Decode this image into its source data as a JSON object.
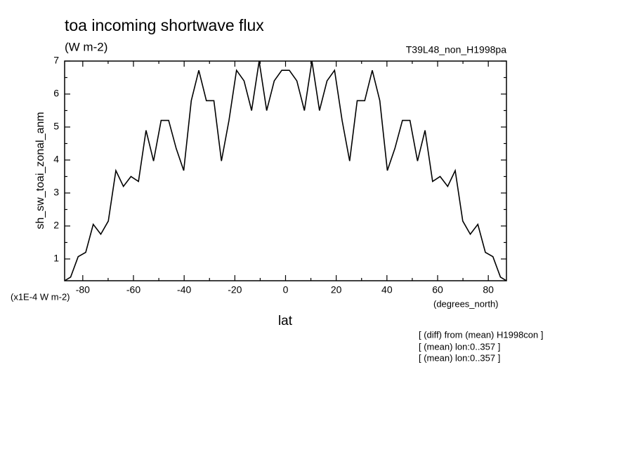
{
  "chart_data": {
    "type": "line",
    "title": "toa incoming shortwave flux",
    "subtitle": "(W m-2)",
    "run_label": "T39L48_non_H1998pa",
    "y_label": "sh_sw_toai_zonal_anm",
    "y_units": "(x1E-4 W m-2)",
    "x_label": "lat",
    "x_units": "(degrees_north)",
    "notes": [
      "[ (diff) from (mean) H1998con ]",
      "[ (mean) lon:0..357 ]",
      "[ (mean) lon:0..357 ]"
    ],
    "x": [
      -87.16,
      -84.79,
      -81.82,
      -78.84,
      -75.87,
      -72.89,
      -69.92,
      -66.94,
      -63.97,
      -60.99,
      -58.02,
      -55.04,
      -52.07,
      -49.09,
      -46.12,
      -43.14,
      -40.17,
      -37.19,
      -34.22,
      -31.24,
      -28.27,
      -25.29,
      -22.32,
      -19.34,
      -16.37,
      -13.39,
      -10.41,
      -7.44,
      -4.46,
      -1.49,
      1.49,
      4.46,
      7.44,
      10.41,
      13.39,
      16.37,
      19.34,
      22.32,
      25.29,
      28.27,
      31.24,
      34.22,
      37.19,
      40.17,
      43.14,
      46.12,
      49.09,
      52.07,
      55.04,
      58.02,
      60.99,
      63.97,
      66.94,
      69.92,
      72.89,
      75.87,
      78.84,
      81.82,
      84.79,
      87.16
    ],
    "series": [
      {
        "color": "#000000",
        "values": [
          0.34,
          0.45,
          1.07,
          1.2,
          2.05,
          1.75,
          2.15,
          3.68,
          3.2,
          3.5,
          3.35,
          4.9,
          3.97,
          5.2,
          5.2,
          4.35,
          3.68,
          5.8,
          6.72,
          5.8,
          5.8,
          3.97,
          5.2,
          6.72,
          6.4,
          5.5,
          7.0,
          5.5,
          6.4,
          6.72,
          6.72,
          6.4,
          5.5,
          7.0,
          5.5,
          6.4,
          6.72,
          5.2,
          3.97,
          5.8,
          5.8,
          6.72,
          5.8,
          3.68,
          4.35,
          5.2,
          5.2,
          3.97,
          4.9,
          3.35,
          3.5,
          3.2,
          3.68,
          2.15,
          1.75,
          2.05,
          1.2,
          1.07,
          0.45,
          0.34
        ]
      }
    ],
    "xlim": [
      -87.16,
      87.16
    ],
    "xticks": [
      -80,
      -60,
      -40,
      -20,
      0,
      20,
      40,
      60,
      80
    ],
    "ylim": [
      0.34,
      7
    ],
    "yticks": [
      1,
      2,
      3,
      4,
      5,
      6,
      7
    ]
  }
}
